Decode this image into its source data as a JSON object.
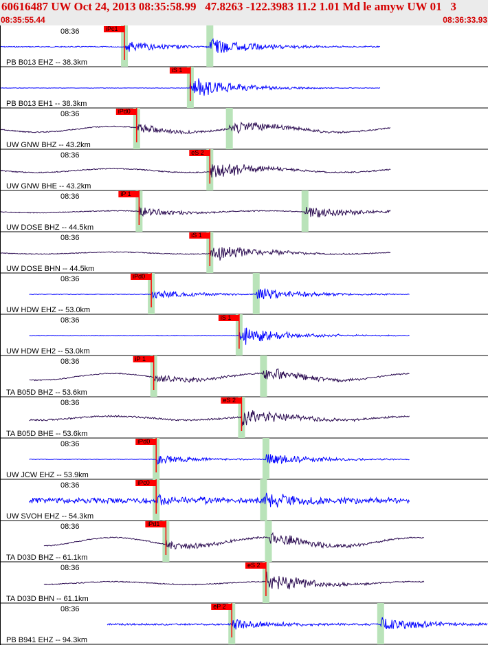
{
  "header": {
    "title": "60616487 UW Oct 24, 2013 08:35:58.99   47.8263 -122.3983 11.2 1.01 Md le amyw UW 01   3",
    "start_time": "08:35:55.44",
    "end_time": "08:36:33.93"
  },
  "colors": {
    "header_bg": "#ebebeb",
    "header_text": "#d40000",
    "trace_blue": "#0000ff",
    "trace_purple": "#2a0a50",
    "pick_red": "#ff0000",
    "window_green": "#b9e3b9"
  },
  "traces": [
    {
      "label": "PB B013 EHZ -- 38.3km",
      "time": "08:36",
      "color": "blue",
      "pick": "iPc1",
      "pick_t": 0.255,
      "s_t": 0.43,
      "start": 0,
      "end": 0.78,
      "amp": 0.6,
      "noise": 0.05,
      "wave": 0
    },
    {
      "label": "PB B013 EH1 -- 38.3km",
      "time": "",
      "color": "blue",
      "pick": "iS 1",
      "pick_t": 0.39,
      "s_t": 0.39,
      "start": 0,
      "end": 0.78,
      "amp": 0.6,
      "noise": 0.02,
      "wave": 0
    },
    {
      "label": "UW GNW BHZ -- 43.2km",
      "time": "08:36",
      "color": "purple",
      "pick": "iPd0",
      "pick_t": 0.28,
      "s_t": 0.47,
      "start": 0,
      "end": 0.8,
      "amp": 0.5,
      "noise": 0.05,
      "wave": 0.3
    },
    {
      "label": "UW GNW BHE -- 43.2km",
      "time": "08:36",
      "color": "purple",
      "pick": "eS 2",
      "pick_t": 0.43,
      "s_t": 0.43,
      "start": 0,
      "end": 0.8,
      "amp": 0.5,
      "noise": 0.05,
      "wave": 0.2
    },
    {
      "label": "UW DOSE BHZ -- 44.5km",
      "time": "08:36",
      "color": "purple",
      "pick": "iP 1",
      "pick_t": 0.285,
      "s_t": 0.625,
      "start": 0,
      "end": 0.8,
      "amp": 0.5,
      "noise": 0.04,
      "wave": 0.1
    },
    {
      "label": "UW DOSE BHN -- 44.5km",
      "time": "08:36",
      "color": "purple",
      "pick": "iS 1",
      "pick_t": 0.43,
      "s_t": 0.43,
      "start": 0,
      "end": 0.8,
      "amp": 0.5,
      "noise": 0.04,
      "wave": 0.1
    },
    {
      "label": "UW HDW EHZ -- 53.0km",
      "time": "08:36",
      "color": "blue",
      "pick": "iPd0",
      "pick_t": 0.31,
      "s_t": 0.525,
      "start": 0.06,
      "end": 0.84,
      "amp": 0.5,
      "noise": 0.03,
      "wave": 0
    },
    {
      "label": "UW HDW EH2 -- 53.0km",
      "time": "08:36",
      "color": "blue",
      "pick": "iS 1",
      "pick_t": 0.49,
      "s_t": 0.49,
      "start": 0.06,
      "end": 0.84,
      "amp": 0.5,
      "noise": 0.03,
      "wave": 0
    },
    {
      "label": "TA B05D BHZ -- 53.6km",
      "time": "08:36",
      "color": "purple",
      "pick": "iP 1",
      "pick_t": 0.315,
      "s_t": 0.54,
      "start": 0.06,
      "end": 0.84,
      "amp": 0.5,
      "noise": 0.05,
      "wave": 0.35
    },
    {
      "label": "TA B05D BHE -- 53.6km",
      "time": "08:36",
      "color": "purple",
      "pick": "eS 2",
      "pick_t": 0.495,
      "s_t": 0.495,
      "start": 0.06,
      "end": 0.84,
      "amp": 0.5,
      "noise": 0.08,
      "wave": 0.2
    },
    {
      "label": "UW JCW EHZ -- 53.9km",
      "time": "08:36",
      "color": "blue",
      "pick": "iPd0",
      "pick_t": 0.32,
      "s_t": 0.545,
      "start": 0.06,
      "end": 0.84,
      "amp": 0.5,
      "noise": 0.03,
      "wave": 0
    },
    {
      "label": "UW SVOH EHZ -- 54.3km",
      "time": "08:36",
      "color": "blue",
      "pick": "iPc0",
      "pick_t": 0.32,
      "s_t": 0.54,
      "start": 0.06,
      "end": 0.84,
      "amp": 0.55,
      "noise": 0.25,
      "wave": 0
    },
    {
      "label": "TA D03D BHZ -- 61.1km",
      "time": "08:36",
      "color": "purple",
      "pick": "iPd1",
      "pick_t": 0.34,
      "s_t": 0.55,
      "start": 0.09,
      "end": 0.87,
      "amp": 0.55,
      "noise": 0.05,
      "wave": 0.45
    },
    {
      "label": "TA D03D BHN -- 61.1km",
      "time": "08:36",
      "color": "purple",
      "pick": "eS 2",
      "pick_t": 0.545,
      "s_t": 0.545,
      "start": 0.09,
      "end": 0.87,
      "amp": 0.55,
      "noise": 0.05,
      "wave": 0.15
    },
    {
      "label": "PB B941 EHZ -- 94.3km",
      "time": "08:36",
      "color": "blue",
      "pick": "eP 2",
      "pick_t": 0.475,
      "s_t": 0.78,
      "start": 0.22,
      "end": 1.0,
      "amp": 0.55,
      "noise": 0.08,
      "wave": 0
    }
  ]
}
